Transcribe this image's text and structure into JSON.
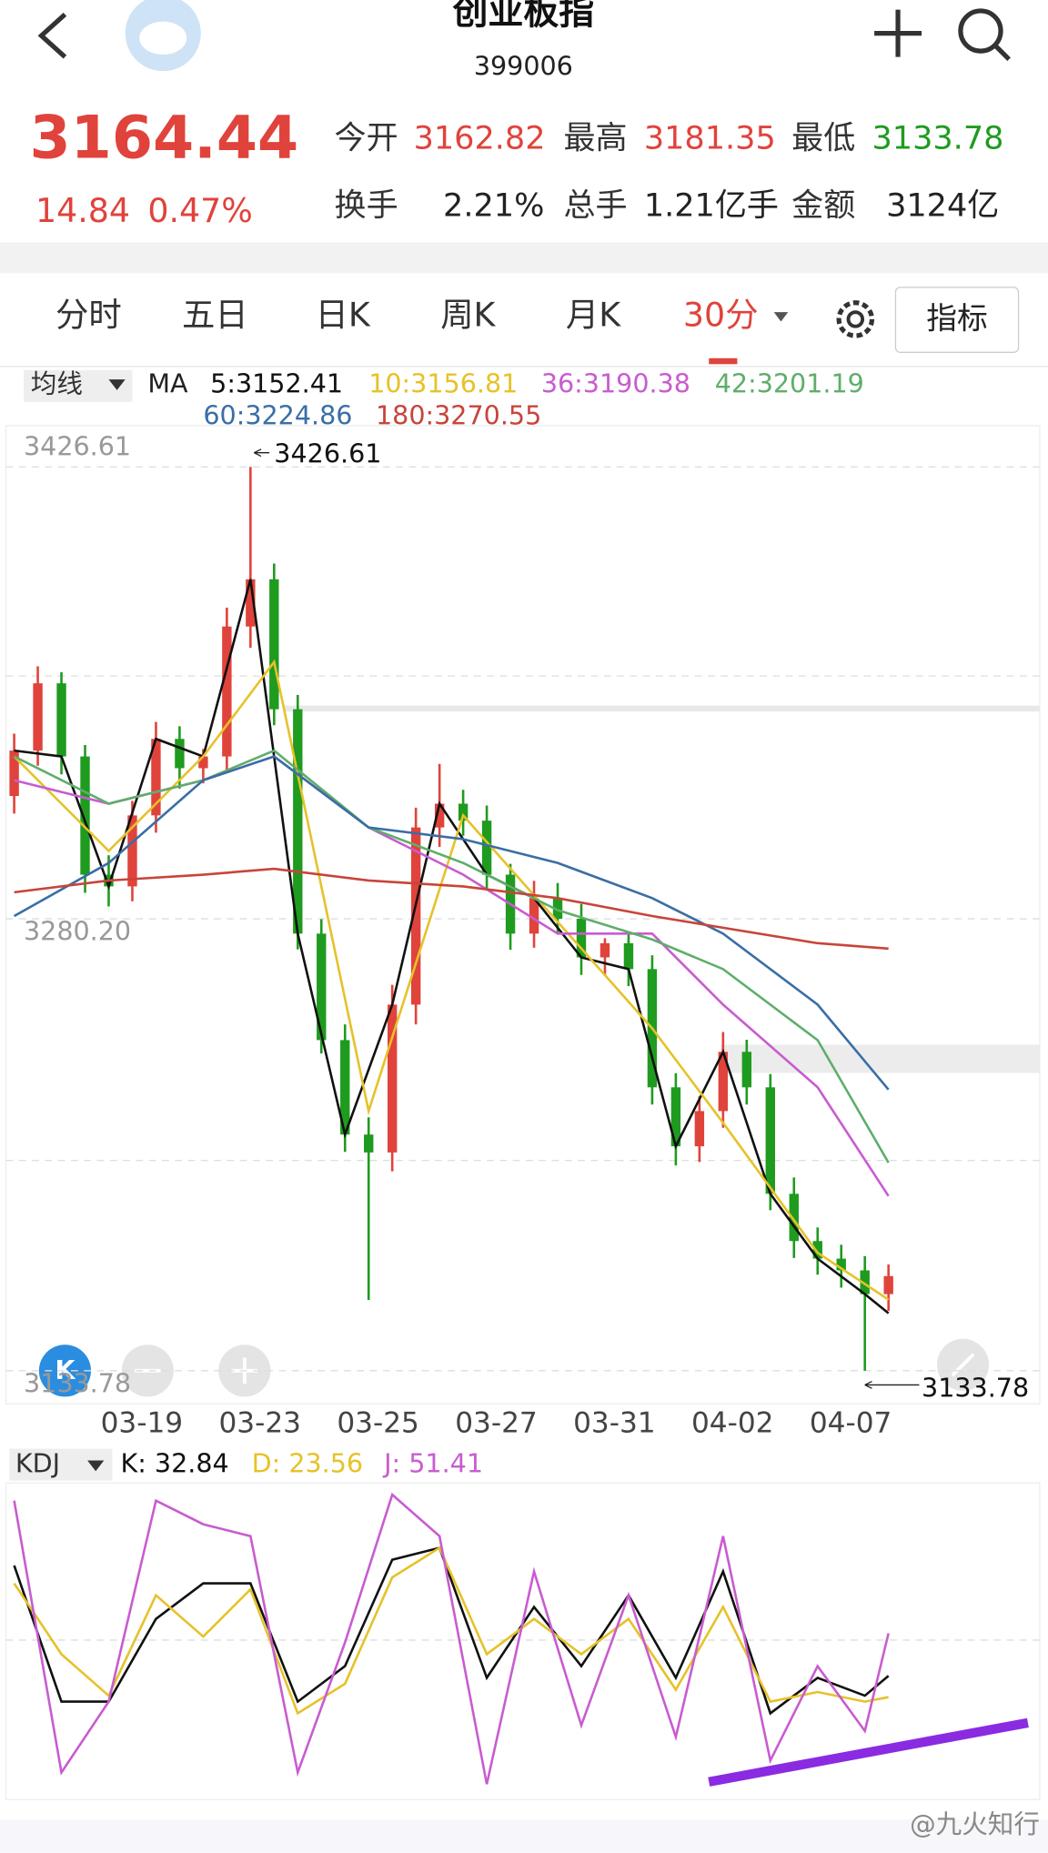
{
  "header": {
    "title": "创业板指",
    "code": "399006"
  },
  "quote": {
    "price": "3164.44",
    "change": "14.84",
    "change_pct": "0.47%",
    "fields": [
      {
        "label": "今开",
        "value": "3162.82",
        "color": "#e0433b"
      },
      {
        "label": "最高",
        "value": "3181.35",
        "color": "#e0433b"
      },
      {
        "label": "最低",
        "value": "3133.78",
        "color": "#1f9b1f"
      },
      {
        "label": "换手",
        "value": "2.21%",
        "color": "#222222"
      },
      {
        "label": "总手",
        "value": "1.21亿手",
        "color": "#222222"
      },
      {
        "label": "金额",
        "value": "3124亿",
        "color": "#222222"
      }
    ]
  },
  "tabs": [
    "分时",
    "五日",
    "日K",
    "周K",
    "月K",
    "30分"
  ],
  "active_tab": 5,
  "indicator_button": "指标",
  "chart_data": [
    {
      "type": "candlestick",
      "indicator_label": "均线",
      "ma_label": "MA",
      "up_color": "#e0433b",
      "down_color": "#1f9b1f",
      "ylim": [
        3133.78,
        3426.61
      ],
      "yticks": [
        3426.61,
        {
          "value": 3280.2,
          "label": "3280.20"
        },
        3133.78
      ],
      "max_label": "3426.61",
      "min_label": "3133.78",
      "categories": [
        "03-19",
        "03-23",
        "03-25",
        "03-27",
        "03-31",
        "04-02",
        "04-07"
      ],
      "candles": {
        "open": [
          3320.0,
          3334.7,
          3356.5,
          3332.8,
          3294.5,
          3290.7,
          3313.7,
          3338.5,
          3329.0,
          3332.8,
          3374.9,
          3390.2,
          3348.1,
          3275.4,
          3240.9,
          3210.3,
          3204.5,
          3252.4,
          3309.8,
          3317.5,
          3312.0,
          3294.5,
          3275.4,
          3286.9,
          3280.2,
          3267.7,
          3272.3,
          3263.9,
          3225.6,
          3206.5,
          3217.9,
          3237.1,
          3225.6,
          3191.1,
          3175.8,
          3170.1,
          3166.3,
          3158.6
        ],
        "high": [
          3340.2,
          3362.0,
          3360.1,
          3336.5,
          3300.8,
          3318.4,
          3344.0,
          3342.6,
          3335.2,
          3381.0,
          3426.61,
          3395.3,
          3352.7,
          3280.1,
          3246.0,
          3215.9,
          3258.8,
          3316.2,
          3330.4,
          3322.0,
          3316.9,
          3298.0,
          3292.5,
          3291.8,
          3285.0,
          3273.9,
          3276.0,
          3268.4,
          3230.2,
          3222.7,
          3243.5,
          3241.0,
          3229.9,
          3196.4,
          3180.2,
          3174.6,
          3170.9,
          3168.2
        ],
        "low": [
          3314.3,
          3329.8,
          3327.0,
          3288.6,
          3284.2,
          3285.9,
          3308.1,
          3322.4,
          3324.1,
          3327.5,
          3368.0,
          3342.9,
          3270.3,
          3236.6,
          3204.7,
          3156.7,
          3198.4,
          3246.0,
          3303.5,
          3307.1,
          3289.9,
          3270.2,
          3270.8,
          3275.3,
          3262.0,
          3262.1,
          3258.4,
          3220.0,
          3200.3,
          3201.4,
          3212.5,
          3220.0,
          3185.8,
          3170.3,
          3164.9,
          3160.7,
          3133.78,
          3153.2
        ],
        "close": [
          3334.7,
          3356.5,
          3332.8,
          3294.5,
          3290.7,
          3313.7,
          3338.5,
          3329.0,
          3332.8,
          3374.9,
          3390.2,
          3348.1,
          3275.4,
          3240.9,
          3210.3,
          3204.5,
          3252.4,
          3309.8,
          3317.5,
          3312.0,
          3294.5,
          3275.4,
          3286.9,
          3280.2,
          3267.7,
          3272.3,
          3263.9,
          3225.6,
          3206.5,
          3217.9,
          3237.1,
          3225.6,
          3191.1,
          3175.8,
          3170.1,
          3166.3,
          3158.6,
          3164.44
        ]
      },
      "series": [
        {
          "name": "5:3152.41",
          "color": "#111111",
          "x": [
            0,
            2,
            4,
            6,
            8,
            10,
            12,
            14,
            16,
            18,
            20,
            22,
            24,
            26,
            28,
            30,
            32,
            34,
            36,
            37
          ],
          "values": [
            3334.7,
            3332.8,
            3290.7,
            3338.5,
            3332.8,
            3390.2,
            3275.4,
            3210.3,
            3252.4,
            3317.5,
            3294.5,
            3286.9,
            3267.7,
            3263.9,
            3206.5,
            3237.1,
            3191.1,
            3170.1,
            3158.6,
            3152.41
          ]
        },
        {
          "name": "10:3156.81",
          "color": "#e6c229",
          "x": [
            0,
            4,
            8,
            11,
            15,
            19,
            23,
            27,
            30,
            34,
            37
          ],
          "values": [
            3332.8,
            3302.2,
            3332.8,
            3363.4,
            3217.9,
            3313.7,
            3279.2,
            3244.7,
            3214.1,
            3172.0,
            3156.81
          ]
        },
        {
          "name": "36:3190.38",
          "color": "#c85cd0",
          "x": [
            0,
            4,
            8,
            11,
            15,
            19,
            23,
            27,
            30,
            34,
            37
          ],
          "values": [
            3325.1,
            3317.5,
            3325.1,
            3332.8,
            3309.8,
            3294.5,
            3275.4,
            3275.4,
            3252.4,
            3225.6,
            3190.38
          ]
        },
        {
          "name": "42:3201.19",
          "color": "#5fae6a",
          "x": [
            0,
            4,
            8,
            11,
            15,
            19,
            23,
            27,
            30,
            34,
            37
          ],
          "values": [
            3332.8,
            3317.5,
            3325.1,
            3334.7,
            3309.8,
            3298.3,
            3283.0,
            3273.5,
            3263.9,
            3240.9,
            3201.19
          ]
        },
        {
          "name": "60:3224.86",
          "color": "#3a6ea5",
          "x": [
            0,
            4,
            8,
            11,
            15,
            19,
            23,
            27,
            30,
            34,
            37
          ],
          "values": [
            3281.1,
            3298.3,
            3325.1,
            3332.8,
            3309.8,
            3306.0,
            3298.3,
            3286.9,
            3275.4,
            3252.4,
            3224.86
          ]
        },
        {
          "name": "180:3270.55",
          "color": "#c8443a",
          "x": [
            0,
            4,
            8,
            11,
            15,
            19,
            23,
            27,
            30,
            34,
            37
          ],
          "values": [
            3288.8,
            3292.6,
            3294.5,
            3296.4,
            3292.6,
            3290.7,
            3286.9,
            3281.1,
            3277.3,
            3272.3,
            3270.55
          ]
        }
      ]
    },
    {
      "type": "line",
      "indicator_label": "KDJ",
      "ylim": [
        0,
        100
      ],
      "series": [
        {
          "name": "K: 32.84",
          "color": "#111111",
          "x": [
            0,
            2,
            4,
            6,
            8,
            10,
            12,
            14,
            16,
            18,
            20,
            22,
            24,
            26,
            28,
            30,
            32,
            34,
            36,
            37
          ],
          "values": [
            81.0,
            21.6,
            21.6,
            57.7,
            73.2,
            73.2,
            21.6,
            37.1,
            83.5,
            88.7,
            32.0,
            62.9,
            37.1,
            68.0,
            32.0,
            78.4,
            16.5,
            32.0,
            24.2,
            32.84
          ]
        },
        {
          "name": "D: 23.56",
          "color": "#e6c229",
          "x": [
            0,
            2,
            4,
            6,
            8,
            10,
            12,
            14,
            16,
            18,
            20,
            22,
            24,
            26,
            28,
            30,
            32,
            34,
            36,
            37
          ],
          "values": [
            73.2,
            42.3,
            24.2,
            68.0,
            50.0,
            70.6,
            16.5,
            29.4,
            75.8,
            88.7,
            42.3,
            57.7,
            42.3,
            57.7,
            26.8,
            62.9,
            21.6,
            25.8,
            21.6,
            23.56
          ]
        },
        {
          "name": "J: 51.41",
          "color": "#c85cd0",
          "x": [
            0,
            2,
            4,
            6,
            8,
            10,
            12,
            14,
            16,
            18,
            20,
            22,
            24,
            26,
            28,
            30,
            32,
            34,
            36,
            37
          ],
          "values": [
            109.3,
            -9.3,
            21.6,
            109.3,
            99.0,
            93.8,
            -9.3,
            47.4,
            111.9,
            93.8,
            -14.4,
            78.4,
            11.3,
            68.0,
            6.2,
            93.8,
            -4.1,
            37.1,
            8.8,
            51.41
          ]
        }
      ]
    }
  ],
  "watermark": "@九火知行"
}
